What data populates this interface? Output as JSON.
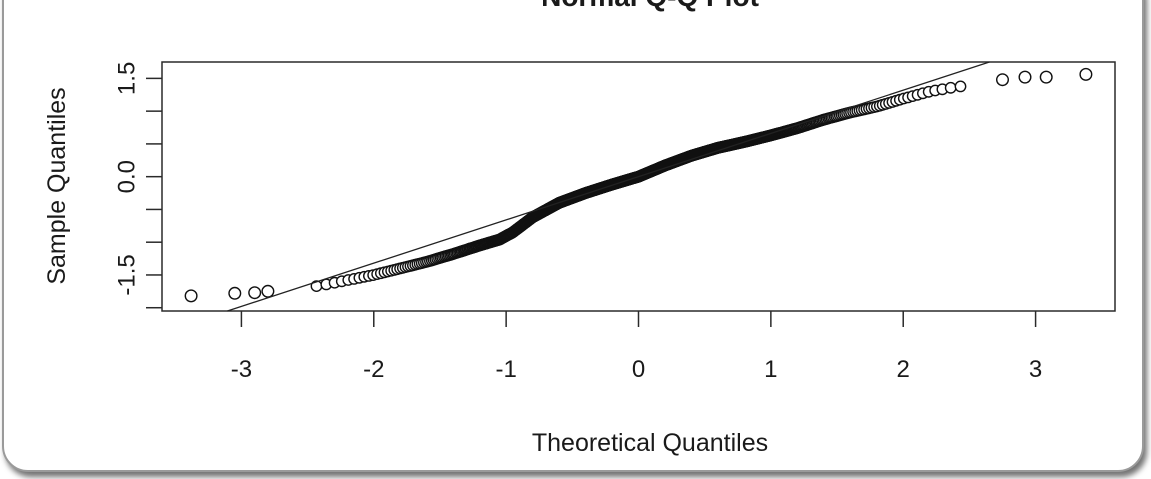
{
  "chart_data": {
    "type": "scatter",
    "title": "Normal Q-Q Plot",
    "xlabel": "Theoretical Quantiles",
    "ylabel": "Sample Quantiles",
    "xlim": [
      -3.6,
      3.6
    ],
    "ylim": [
      -2.05,
      1.75
    ],
    "x_ticks": [
      -3,
      -2,
      -1,
      0,
      1,
      2,
      3
    ],
    "x_tick_labels": [
      "-3",
      "-2",
      "-1",
      "0",
      "1",
      "2",
      "3"
    ],
    "y_ticks": [
      -2.0,
      -1.5,
      -1.0,
      -0.5,
      0.0,
      0.5,
      1.0,
      1.5
    ],
    "y_tick_labels": [
      "",
      "-1.5",
      "",
      "",
      "0.0",
      "",
      "",
      "1.5"
    ],
    "grid": false,
    "reference_line": {
      "slope": 0.66,
      "intercept": 0.0
    },
    "quantile_curve": [
      [
        -3.4,
        -1.85
      ],
      [
        -3.1,
        -1.8
      ],
      [
        -2.9,
        -1.78
      ],
      [
        -2.6,
        -1.72
      ],
      [
        -2.4,
        -1.66
      ],
      [
        -2.2,
        -1.58
      ],
      [
        -2.0,
        -1.5
      ],
      [
        -1.8,
        -1.4
      ],
      [
        -1.6,
        -1.3
      ],
      [
        -1.4,
        -1.18
      ],
      [
        -1.2,
        -1.05
      ],
      [
        -1.05,
        -0.96
      ],
      [
        -0.95,
        -0.85
      ],
      [
        -0.8,
        -0.62
      ],
      [
        -0.6,
        -0.4
      ],
      [
        -0.4,
        -0.25
      ],
      [
        -0.2,
        -0.12
      ],
      [
        0.0,
        0.0
      ],
      [
        0.2,
        0.17
      ],
      [
        0.4,
        0.32
      ],
      [
        0.6,
        0.44
      ],
      [
        0.8,
        0.53
      ],
      [
        1.0,
        0.63
      ],
      [
        1.2,
        0.74
      ],
      [
        1.4,
        0.87
      ],
      [
        1.6,
        0.98
      ],
      [
        1.8,
        1.07
      ],
      [
        2.0,
        1.19
      ],
      [
        2.2,
        1.3
      ],
      [
        2.4,
        1.37
      ],
      [
        2.6,
        1.42
      ],
      [
        2.8,
        1.47
      ],
      [
        3.0,
        1.5
      ],
      [
        3.4,
        1.55
      ]
    ],
    "tail_points": [
      [
        -3.38,
        -1.82
      ],
      [
        -3.05,
        -1.78
      ],
      [
        -2.9,
        -1.77
      ],
      [
        -2.8,
        -1.75
      ],
      [
        2.75,
        1.48
      ],
      [
        2.92,
        1.52
      ],
      [
        3.08,
        1.52
      ],
      [
        3.38,
        1.56
      ]
    ],
    "n_points": 600
  }
}
